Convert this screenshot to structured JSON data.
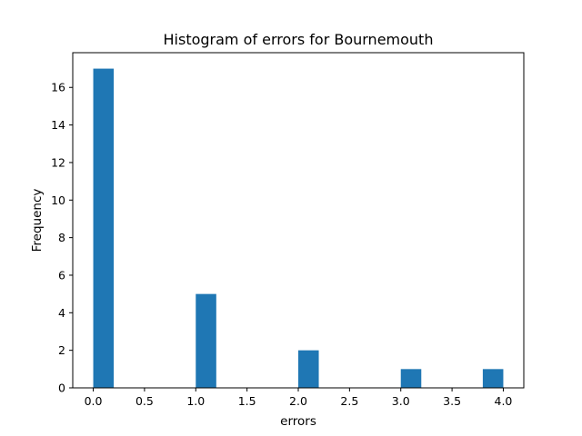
{
  "chart_data": {
    "type": "bar",
    "title": "Histogram of errors for Bournemouth",
    "xlabel": "errors",
    "ylabel": "Frequency",
    "bin_width": 0.2,
    "bins": [
      {
        "start": 0.0,
        "end": 0.2,
        "count": 17
      },
      {
        "start": 1.0,
        "end": 1.2,
        "count": 5
      },
      {
        "start": 2.0,
        "end": 2.2,
        "count": 2
      },
      {
        "start": 3.0,
        "end": 3.2,
        "count": 1
      },
      {
        "start": 3.8,
        "end": 4.0,
        "count": 1
      }
    ],
    "xlim": [
      -0.2,
      4.2
    ],
    "ylim": [
      0,
      17.85
    ],
    "xticks": [
      "0.0",
      "0.5",
      "1.0",
      "1.5",
      "2.0",
      "2.5",
      "3.0",
      "3.5",
      "4.0"
    ],
    "yticks": [
      "0",
      "2",
      "4",
      "6",
      "8",
      "10",
      "12",
      "14",
      "16"
    ],
    "grid": false,
    "bar_color": "#1f77b4"
  }
}
